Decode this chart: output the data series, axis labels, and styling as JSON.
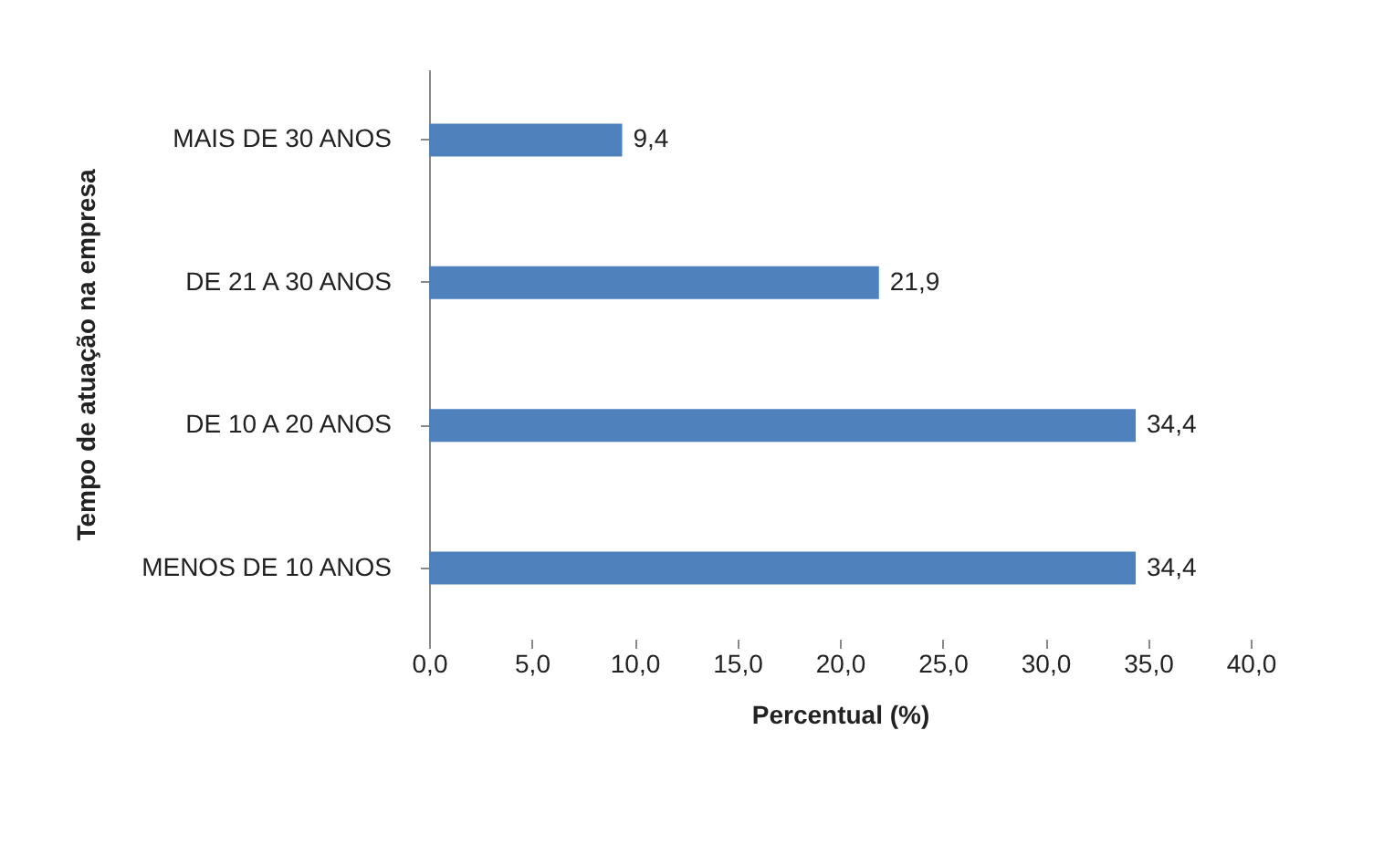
{
  "chart_data": {
    "type": "bar",
    "orientation": "horizontal",
    "xlabel": "Percentual (%)",
    "ylabel": "Tempo de atuação na empresa",
    "categories": [
      "MAIS DE 30 ANOS",
      "DE 21 A 30 ANOS",
      "DE 10 A 20 ANOS",
      "MENOS DE 10 ANOS"
    ],
    "values": [
      9.4,
      21.9,
      34.4,
      34.4
    ],
    "value_labels": [
      "9,4",
      "21,9",
      "34,4",
      "34,4"
    ],
    "color": "#4f81bd",
    "xlim": [
      0,
      40
    ],
    "xticks": [
      {
        "value": 0,
        "label": "0,0"
      },
      {
        "value": 5,
        "label": "5,0"
      },
      {
        "value": 10,
        "label": "10,0"
      },
      {
        "value": 15,
        "label": "15,0"
      },
      {
        "value": 20,
        "label": "20,0"
      },
      {
        "value": 25,
        "label": "25,0"
      },
      {
        "value": 30,
        "label": "30,0"
      },
      {
        "value": 35,
        "label": "35,0"
      },
      {
        "value": 40,
        "label": "40,0"
      }
    ],
    "grid": false
  }
}
